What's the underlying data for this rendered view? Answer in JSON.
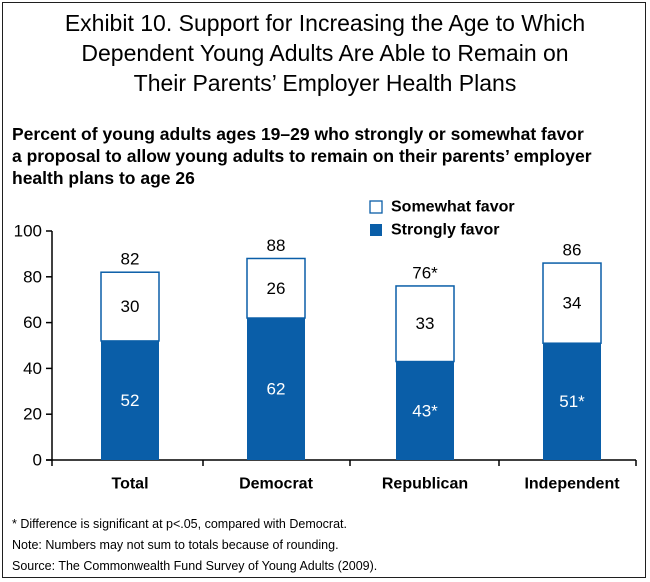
{
  "title_lines": [
    "Exhibit 10. Support for Increasing the Age to Which",
    "Dependent Young Adults Are Able to Remain on",
    "Their Parents’ Employer Health Plans"
  ],
  "subtitle_lines": [
    "Percent of young adults ages 19–29 who strongly or somewhat favor",
    "a proposal to allow young adults to remain on their parents’ employer",
    "health plans to age 26"
  ],
  "notes": [
    "* Difference is significant at p<.05, compared with Democrat.",
    "Note: Numbers may not sum to totals because of rounding.",
    "Source: The Commonwealth Fund Survey of Young Adults (2009)."
  ],
  "colors": {
    "strongly": "#0a5ea8",
    "somewhat": "#ffffff",
    "outline": "#0a5ea8",
    "axis": "#000000"
  },
  "chart_data": {
    "type": "bar",
    "stacked": true,
    "categories": [
      "Total",
      "Democrat",
      "Republican",
      "Independent"
    ],
    "series": [
      {
        "name": "Strongly favor",
        "values": [
          52,
          62,
          43,
          51
        ],
        "labels": [
          "52",
          "62",
          "43*",
          "51*"
        ]
      },
      {
        "name": "Somewhat favor",
        "values": [
          30,
          26,
          33,
          34
        ],
        "labels": [
          "30",
          "26",
          "33",
          "34"
        ]
      }
    ],
    "totals": [
      82,
      88,
      76,
      86
    ],
    "total_labels": [
      "82",
      "88",
      "76*",
      "86"
    ],
    "ylim": [
      0,
      100
    ],
    "yticks": [
      0,
      20,
      40,
      60,
      80,
      100
    ],
    "legend_position": "top-right",
    "grid": false
  }
}
